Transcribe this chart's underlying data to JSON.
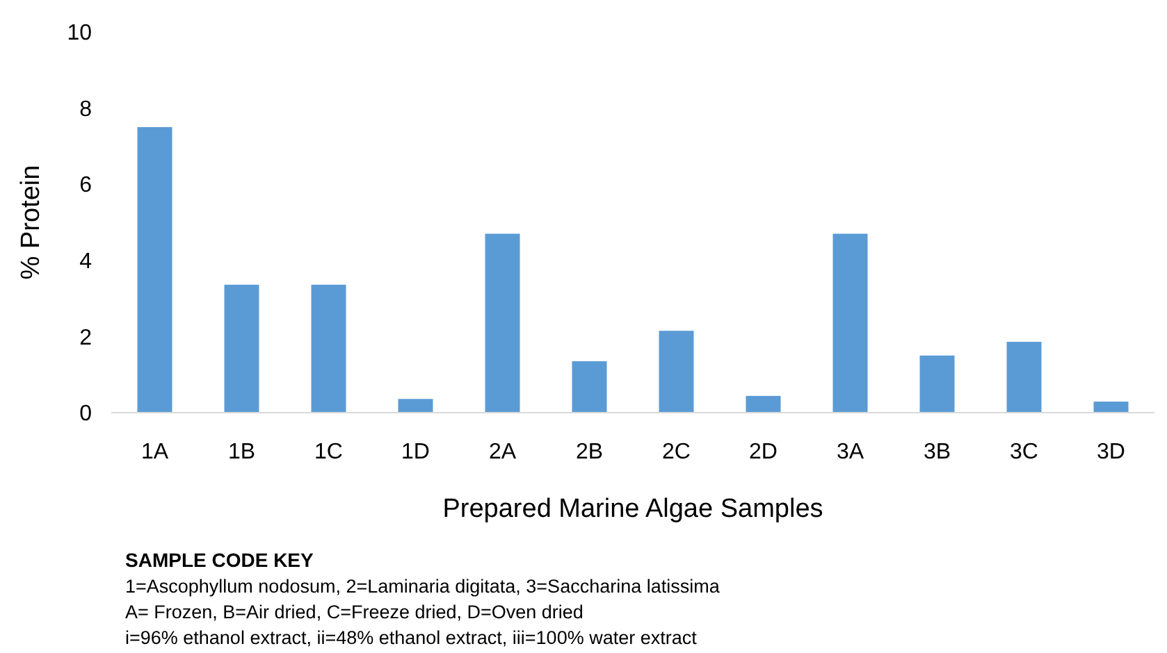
{
  "chart_data": {
    "type": "bar",
    "ylabel": "%  Protein",
    "xlabel": "Prepared Marine Algae Samples",
    "categories": [
      "1A",
      "1B",
      "1C",
      "1D",
      "2A",
      "2B",
      "2C",
      "2D",
      "3A",
      "3B",
      "3C",
      "3D"
    ],
    "values": [
      7.5,
      3.36,
      3.36,
      0.36,
      4.7,
      1.35,
      2.15,
      0.44,
      4.7,
      1.5,
      1.86,
      0.29
    ],
    "color": "#5b9bd5",
    "ylim": [
      0,
      10
    ],
    "yticks": [
      0,
      2,
      4,
      6,
      8,
      10
    ],
    "grid": false,
    "annotations": [
      "SAMPLE CODE KEY",
      "1=Ascophyllum nodosum, 2=Laminaria digitata, 3=Saccharina latissima",
      "A= Frozen, B=Air dried, C=Freeze dried, D=Oven dried",
      "i=96% ethanol extract, ii=48% ethanol extract, iii=100% water extract"
    ]
  }
}
